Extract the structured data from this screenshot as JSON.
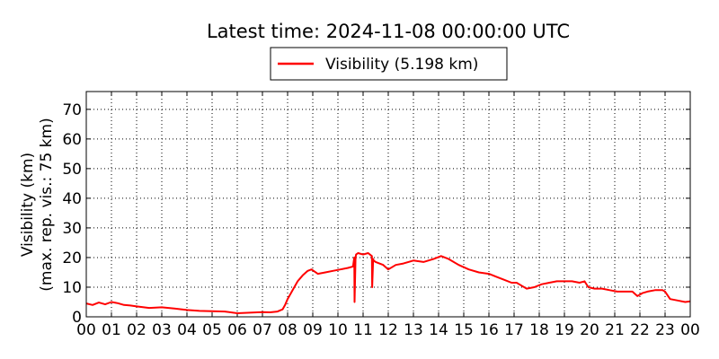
{
  "chart_data": {
    "type": "line",
    "title": "Latest time: 2024-11-08 00:00:00 UTC",
    "ylabel_line1": "Visibility (km)",
    "ylabel_line2": "(max. rep. vis.: 75 km)",
    "xlabel": "",
    "x_ticks": [
      "00",
      "01",
      "02",
      "03",
      "04",
      "05",
      "06",
      "07",
      "08",
      "09",
      "10",
      "11",
      "12",
      "13",
      "14",
      "15",
      "16",
      "17",
      "18",
      "19",
      "20",
      "21",
      "22",
      "23",
      "00"
    ],
    "xlim": [
      0,
      24
    ],
    "y_ticks": [
      0,
      10,
      20,
      30,
      40,
      50,
      60,
      70
    ],
    "ylim": [
      0,
      76
    ],
    "grid": true,
    "legend_position": "top-center",
    "series": [
      {
        "name": "Visibility (5.198 km)",
        "color": "#ff0000",
        "x": [
          0,
          0.25,
          0.5,
          0.75,
          1.0,
          1.25,
          1.5,
          1.75,
          2.0,
          2.5,
          3.0,
          3.5,
          4.0,
          4.5,
          5.0,
          5.5,
          6.0,
          6.5,
          7.0,
          7.3,
          7.6,
          7.8,
          7.9,
          8.0,
          8.2,
          8.4,
          8.6,
          8.8,
          8.95,
          9.2,
          9.5,
          9.8,
          10.1,
          10.4,
          10.6,
          10.65,
          10.66,
          10.7,
          10.72,
          10.8,
          11.0,
          11.2,
          11.35,
          11.36,
          11.4,
          11.42,
          11.5,
          11.8,
          12.0,
          12.3,
          12.6,
          13.0,
          13.4,
          13.8,
          14.1,
          14.4,
          14.8,
          15.2,
          15.6,
          16.0,
          16.3,
          16.6,
          16.9,
          17.1,
          17.3,
          17.5,
          17.8,
          18.1,
          18.4,
          18.7,
          19.0,
          19.3,
          19.6,
          19.8,
          19.95,
          20.2,
          20.5,
          20.8,
          21.1,
          21.4,
          21.7,
          21.9,
          22.1,
          22.3,
          22.6,
          22.9,
          23.0,
          23.2,
          23.5,
          23.8,
          24.0
        ],
        "y": [
          4.5,
          4.0,
          4.8,
          4.2,
          5.0,
          4.6,
          4.0,
          3.8,
          3.5,
          3.0,
          3.2,
          2.8,
          2.3,
          2.0,
          1.9,
          1.8,
          1.2,
          1.4,
          1.6,
          1.5,
          1.8,
          2.5,
          4.0,
          6.0,
          9.0,
          12.0,
          14.0,
          15.5,
          16.0,
          14.5,
          15.0,
          15.5,
          16.0,
          16.5,
          17.0,
          20.0,
          5.0,
          20.0,
          21.0,
          21.5,
          21.0,
          21.5,
          20.5,
          10.0,
          19.5,
          19.0,
          18.5,
          17.5,
          16.0,
          17.5,
          18.0,
          19.0,
          18.5,
          19.5,
          20.5,
          19.5,
          17.5,
          16.0,
          15.0,
          14.5,
          13.5,
          12.5,
          11.5,
          11.5,
          10.5,
          9.5,
          10.0,
          11.0,
          11.5,
          12.0,
          12.0,
          12.0,
          11.5,
          12.0,
          10.0,
          9.5,
          9.5,
          9.0,
          8.5,
          8.5,
          8.5,
          7.0,
          8.0,
          8.5,
          9.0,
          9.0,
          8.5,
          6.0,
          5.5,
          5.0,
          5.2
        ]
      }
    ]
  }
}
